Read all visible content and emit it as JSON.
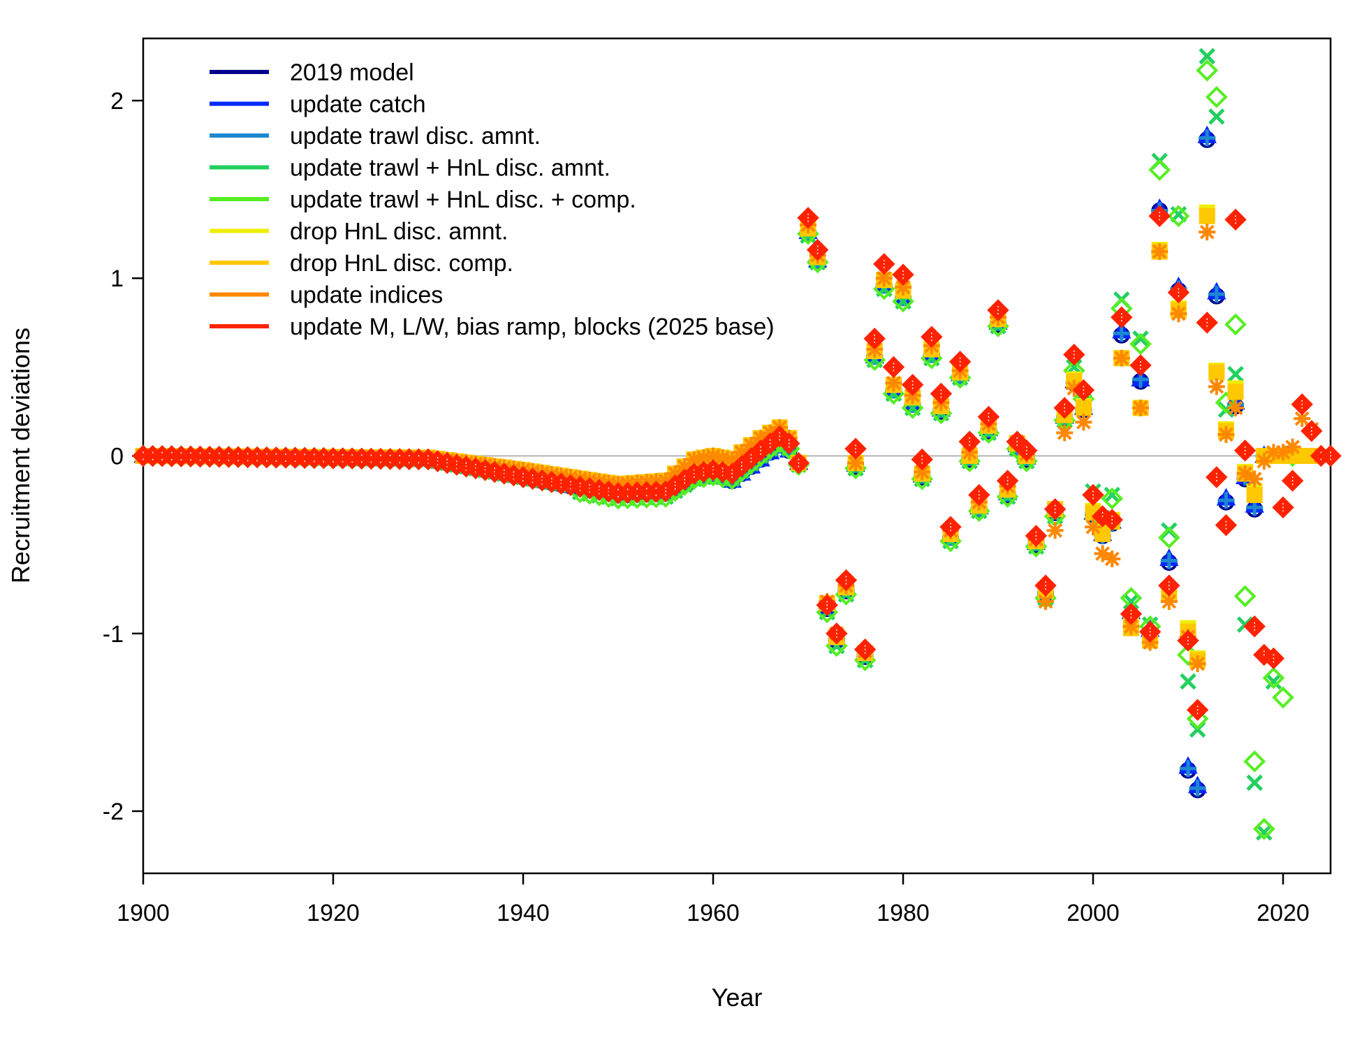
{
  "chart_data": {
    "type": "scatter",
    "title": "",
    "xlabel": "Year",
    "ylabel": "Recruitment deviations",
    "xlim": [
      1900,
      2025
    ],
    "ylim": [
      -2.35,
      2.35
    ],
    "x_ticks": [
      1900,
      1920,
      1940,
      1960,
      1980,
      2000,
      2020
    ],
    "x_tick_labels": [
      "1900",
      "1920",
      "1940",
      "1960",
      "1980",
      "2000",
      "2020"
    ],
    "y_ticks": [
      -2,
      -1,
      0,
      1,
      2
    ],
    "y_tick_labels": [
      "-2",
      "-1",
      "0",
      "1",
      "2"
    ],
    "reference_line": {
      "y": 0,
      "color": "#b3b3b3"
    },
    "legend_placement": "top-left",
    "grid": false,
    "series": [
      {
        "name": "2019 model",
        "color": "#00008f",
        "marker": "circle",
        "x": [
          1969,
          1970,
          1971,
          1972,
          1973,
          1974,
          1975,
          1976,
          1977,
          1978,
          1979,
          1980,
          1981,
          1982,
          1983,
          1984,
          1985,
          1986,
          1987,
          1988,
          1989,
          1990,
          1991,
          1992,
          1993,
          1994,
          1995,
          1996,
          1997,
          1998,
          1999,
          2000,
          2001,
          2002,
          2003,
          2004,
          2005,
          2006,
          2007,
          2008,
          2009,
          2010,
          2011,
          2012,
          2013,
          2014,
          2015,
          2016,
          2017,
          2018
        ],
        "y": [
          -0.04,
          1.25,
          1.1,
          -0.86,
          -1.04,
          -0.76,
          -0.06,
          -1.13,
          0.56,
          0.96,
          0.37,
          0.89,
          0.29,
          -0.12,
          0.57,
          0.25,
          -0.46,
          0.45,
          -0.02,
          -0.3,
          0.14,
          0.74,
          -0.22,
          0.05,
          -0.02,
          -0.5,
          -0.78,
          -0.32,
          0.21,
          0.41,
          0.26,
          -0.33,
          -0.45,
          -0.38,
          0.68,
          -0.9,
          0.42,
          -1.0,
          1.38,
          -0.6,
          0.93,
          -1.77,
          -1.88,
          1.78,
          0.9,
          -0.26,
          0.28,
          -0.13,
          -0.3,
          0.0
        ]
      },
      {
        "name": "update catch",
        "color": "#0028ff",
        "marker": "triangle",
        "x": [
          1969,
          1970,
          1971,
          1972,
          1973,
          1974,
          1975,
          1976,
          1977,
          1978,
          1979,
          1980,
          1981,
          1982,
          1983,
          1984,
          1985,
          1986,
          1987,
          1988,
          1989,
          1990,
          1991,
          1992,
          1993,
          1994,
          1995,
          1996,
          1997,
          1998,
          1999,
          2000,
          2001,
          2002,
          2003,
          2004,
          2005,
          2006,
          2007,
          2008,
          2009,
          2010,
          2011,
          2012,
          2013,
          2014,
          2015,
          2016,
          2017,
          2018
        ],
        "y": [
          -0.04,
          1.26,
          1.1,
          -0.85,
          -1.03,
          -0.75,
          -0.05,
          -1.12,
          0.56,
          0.97,
          0.38,
          0.9,
          0.3,
          -0.11,
          0.58,
          0.26,
          -0.45,
          0.46,
          -0.01,
          -0.29,
          0.15,
          0.75,
          -0.21,
          0.06,
          -0.01,
          -0.49,
          -0.77,
          -0.31,
          0.22,
          0.42,
          0.27,
          -0.32,
          -0.44,
          -0.37,
          0.7,
          -0.88,
          0.43,
          -0.98,
          1.39,
          -0.58,
          0.95,
          -1.75,
          -1.86,
          1.8,
          0.92,
          -0.24,
          0.3,
          -0.12,
          -0.28,
          0.0
        ]
      },
      {
        "name": "update trawl disc. amnt.",
        "color": "#1e88d0",
        "marker": "plus",
        "x": [
          1969,
          1970,
          1971,
          1972,
          1973,
          1974,
          1975,
          1976,
          1977,
          1978,
          1979,
          1980,
          1981,
          1982,
          1983,
          1984,
          1985,
          1986,
          1987,
          1988,
          1989,
          1990,
          1991,
          1992,
          1993,
          1994,
          1995,
          1996,
          1997,
          1998,
          1999,
          2000,
          2001,
          2002,
          2003,
          2004,
          2005,
          2006,
          2007,
          2008,
          2009,
          2010,
          2011,
          2012,
          2013,
          2014,
          2015,
          2016,
          2017,
          2018
        ],
        "y": [
          -0.04,
          1.26,
          1.1,
          -0.85,
          -1.03,
          -0.75,
          -0.05,
          -1.12,
          0.56,
          0.96,
          0.37,
          0.89,
          0.29,
          -0.11,
          0.57,
          0.26,
          -0.46,
          0.45,
          -0.01,
          -0.3,
          0.15,
          0.75,
          -0.21,
          0.05,
          -0.01,
          -0.49,
          -0.77,
          -0.31,
          0.22,
          0.41,
          0.26,
          -0.33,
          -0.45,
          -0.38,
          0.69,
          -0.89,
          0.43,
          -0.99,
          1.38,
          -0.59,
          0.94,
          -1.76,
          -1.87,
          1.79,
          0.91,
          -0.25,
          0.29,
          -0.12,
          -0.29,
          0.0
        ]
      },
      {
        "name": "update trawl + HnL disc. amnt.",
        "color": "#22d060",
        "marker": "x",
        "x": [
          1969,
          1970,
          1971,
          1972,
          1973,
          1974,
          1975,
          1976,
          1977,
          1978,
          1979,
          1980,
          1981,
          1982,
          1983,
          1984,
          1985,
          1986,
          1987,
          1988,
          1989,
          1990,
          1991,
          1992,
          1993,
          1994,
          1995,
          1996,
          1997,
          1998,
          1999,
          2000,
          2001,
          2002,
          2003,
          2004,
          2005,
          2006,
          2007,
          2008,
          2009,
          2010,
          2011,
          2012,
          2013,
          2014,
          2015,
          2016,
          2017,
          2018,
          2019,
          2020
        ],
        "y": [
          -0.05,
          1.24,
          1.09,
          -0.88,
          -1.07,
          -0.78,
          -0.07,
          -1.15,
          0.54,
          0.94,
          0.35,
          0.87,
          0.27,
          -0.13,
          0.55,
          0.24,
          -0.48,
          0.44,
          -0.03,
          -0.31,
          0.13,
          0.73,
          -0.23,
          0.04,
          -0.03,
          -0.51,
          -0.8,
          -0.34,
          0.2,
          0.5,
          0.31,
          -0.2,
          -0.35,
          -0.22,
          0.88,
          -0.82,
          0.66,
          -0.95,
          1.66,
          -0.42,
          1.36,
          -1.27,
          -1.54,
          2.25,
          1.91,
          0.26,
          0.46,
          -0.95,
          -1.84,
          -2.12,
          -1.27,
          0.0
        ]
      },
      {
        "name": "update trawl + HnL disc. + comp.",
        "color": "#55ee22",
        "marker": "diamond-open",
        "x": [
          1969,
          1970,
          1971,
          1972,
          1973,
          1974,
          1975,
          1976,
          1977,
          1978,
          1979,
          1980,
          1981,
          1982,
          1983,
          1984,
          1985,
          1986,
          1987,
          1988,
          1989,
          1990,
          1991,
          1992,
          1993,
          1994,
          1995,
          1996,
          1997,
          1998,
          1999,
          2000,
          2001,
          2002,
          2003,
          2004,
          2005,
          2006,
          2007,
          2008,
          2009,
          2010,
          2011,
          2012,
          2013,
          2014,
          2015,
          2016,
          2017,
          2018,
          2019,
          2020,
          2021
        ],
        "y": [
          -0.05,
          1.25,
          1.09,
          -0.88,
          -1.07,
          -0.78,
          -0.07,
          -1.15,
          0.54,
          0.94,
          0.35,
          0.87,
          0.27,
          -0.13,
          0.55,
          0.24,
          -0.48,
          0.44,
          -0.03,
          -0.31,
          0.13,
          0.73,
          -0.23,
          0.04,
          -0.03,
          -0.51,
          -0.8,
          -0.34,
          0.2,
          0.48,
          0.32,
          -0.22,
          -0.36,
          -0.24,
          0.83,
          -0.8,
          0.63,
          -0.96,
          1.61,
          -0.46,
          1.35,
          -1.12,
          -1.48,
          2.17,
          2.02,
          0.3,
          0.74,
          -0.79,
          -1.72,
          -2.1,
          -1.25,
          -1.36,
          0.0
        ]
      },
      {
        "name": "drop HnL disc. amnt.",
        "color": "#eeee00",
        "marker": "square",
        "x": [
          1969,
          1970,
          1971,
          1972,
          1973,
          1974,
          1975,
          1976,
          1977,
          1978,
          1979,
          1980,
          1981,
          1982,
          1983,
          1984,
          1985,
          1986,
          1987,
          1988,
          1989,
          1990,
          1991,
          1992,
          1993,
          1994,
          1995,
          1996,
          1997,
          1998,
          1999,
          2000,
          2001,
          2002,
          2003,
          2004,
          2005,
          2006,
          2007,
          2008,
          2009,
          2010,
          2011,
          2012,
          2013,
          2014,
          2015,
          2016,
          2017,
          2018,
          2019,
          2020,
          2021,
          2022,
          2023
        ],
        "y": [
          -0.04,
          1.28,
          1.12,
          -0.83,
          -1.02,
          -0.74,
          -0.04,
          -1.11,
          0.59,
          0.99,
          0.4,
          0.93,
          0.33,
          -0.1,
          0.6,
          0.28,
          -0.44,
          0.47,
          0.0,
          -0.28,
          0.17,
          0.77,
          -0.19,
          0.07,
          0.0,
          -0.48,
          -0.76,
          -0.3,
          0.23,
          0.43,
          0.28,
          -0.31,
          -0.43,
          -0.36,
          0.55,
          -0.95,
          0.27,
          -1.03,
          1.16,
          -0.77,
          0.83,
          -0.97,
          -1.14,
          1.37,
          0.48,
          0.15,
          0.38,
          -0.09,
          -0.2,
          0.0,
          0.0,
          0.0,
          0.0,
          0.0,
          0.0
        ]
      },
      {
        "name": "drop HnL disc. comp.",
        "color": "#ffc800",
        "marker": "square",
        "x": [
          1969,
          1970,
          1971,
          1972,
          1973,
          1974,
          1975,
          1976,
          1977,
          1978,
          1979,
          1980,
          1981,
          1982,
          1983,
          1984,
          1985,
          1986,
          1987,
          1988,
          1989,
          1990,
          1991,
          1992,
          1993,
          1994,
          1995,
          1996,
          1997,
          1998,
          1999,
          2000,
          2001,
          2002,
          2003,
          2004,
          2005,
          2006,
          2007,
          2008,
          2009,
          2010,
          2011,
          2012,
          2013,
          2014,
          2015,
          2016,
          2017,
          2018,
          2019,
          2020,
          2021,
          2022,
          2023
        ],
        "y": [
          -0.04,
          1.28,
          1.12,
          -0.83,
          -1.02,
          -0.74,
          -0.04,
          -1.11,
          0.59,
          0.99,
          0.4,
          0.93,
          0.33,
          -0.1,
          0.6,
          0.28,
          -0.44,
          0.47,
          0.0,
          -0.28,
          0.17,
          0.77,
          -0.19,
          0.07,
          0.0,
          -0.48,
          -0.76,
          -0.3,
          0.23,
          0.42,
          0.27,
          -0.32,
          -0.44,
          -0.37,
          0.55,
          -0.97,
          0.27,
          -1.04,
          1.15,
          -0.78,
          0.82,
          -0.99,
          -1.15,
          1.35,
          0.47,
          0.14,
          0.36,
          -0.1,
          -0.22,
          0.0,
          0.0,
          0.0,
          0.0,
          0.0,
          0.0
        ]
      },
      {
        "name": "update indices",
        "color": "#ff8800",
        "marker": "asterisk",
        "x": [
          1969,
          1970,
          1971,
          1972,
          1973,
          1974,
          1975,
          1976,
          1977,
          1978,
          1979,
          1980,
          1981,
          1982,
          1983,
          1984,
          1985,
          1986,
          1987,
          1988,
          1989,
          1990,
          1991,
          1992,
          1993,
          1994,
          1995,
          1996,
          1997,
          1998,
          1999,
          2000,
          2001,
          2002,
          2003,
          2004,
          2005,
          2006,
          2007,
          2008,
          2009,
          2010,
          2011,
          2012,
          2013,
          2014,
          2015,
          2016,
          2017,
          2018,
          2019,
          2020,
          2021,
          2022,
          2023,
          2024
        ],
        "y": [
          -0.04,
          1.3,
          1.13,
          -0.82,
          -1.0,
          -0.73,
          -0.04,
          -1.1,
          0.6,
          1.0,
          0.41,
          0.95,
          0.34,
          -0.09,
          0.62,
          0.3,
          -0.42,
          0.48,
          0.02,
          -0.26,
          0.18,
          0.78,
          -0.17,
          0.08,
          0.01,
          -0.47,
          -0.82,
          -0.42,
          0.13,
          0.38,
          0.19,
          -0.4,
          -0.55,
          -0.58,
          0.55,
          -0.96,
          0.27,
          -1.05,
          1.15,
          -0.82,
          0.8,
          -1.02,
          -1.17,
          1.26,
          0.39,
          0.12,
          0.27,
          -0.1,
          -0.13,
          -0.03,
          0.02,
          0.02,
          0.05,
          0.21,
          0.15,
          0.0
        ]
      },
      {
        "name": "update M, L/W, bias ramp, blocks (2025 base)",
        "color": "#ff2200",
        "marker": "diamond-filled",
        "x": [
          1969,
          1970,
          1971,
          1972,
          1973,
          1974,
          1975,
          1976,
          1977,
          1978,
          1979,
          1980,
          1981,
          1982,
          1983,
          1984,
          1985,
          1986,
          1987,
          1988,
          1989,
          1990,
          1991,
          1992,
          1993,
          1994,
          1995,
          1996,
          1997,
          1998,
          1999,
          2000,
          2001,
          2002,
          2003,
          2004,
          2005,
          2006,
          2007,
          2008,
          2009,
          2010,
          2011,
          2012,
          2013,
          2014,
          2015,
          2016,
          2017,
          2018,
          2019,
          2020,
          2021,
          2022,
          2023,
          2024,
          2025
        ],
        "y": [
          -0.04,
          1.34,
          1.16,
          -0.84,
          -1.0,
          -0.7,
          0.04,
          -1.09,
          0.66,
          1.08,
          0.5,
          1.02,
          0.4,
          -0.02,
          0.67,
          0.35,
          -0.4,
          0.53,
          0.08,
          -0.22,
          0.22,
          0.82,
          -0.14,
          0.08,
          0.03,
          -0.45,
          -0.73,
          -0.3,
          0.27,
          0.57,
          0.37,
          -0.22,
          -0.34,
          -0.36,
          0.78,
          -0.89,
          0.51,
          -0.99,
          1.35,
          -0.73,
          0.92,
          -1.04,
          -1.43,
          0.75,
          -0.12,
          -0.39,
          1.33,
          0.03,
          -0.96,
          -1.12,
          -1.14,
          -0.29,
          -0.14,
          0.29,
          0.14,
          0.0,
          0.0
        ]
      }
    ],
    "pre_1969_series": {
      "description_x_range": [
        1900,
        1968
      ],
      "anchor_years": [
        1900,
        1930,
        1940,
        1950,
        1955,
        1958,
        1960,
        1962,
        1965,
        1967,
        1968
      ],
      "model_2019_y": [
        0.0,
        -0.02,
        -0.12,
        -0.22,
        -0.21,
        -0.12,
        -0.1,
        -0.14,
        -0.02,
        0.06,
        0.03
      ],
      "update_indices_y": [
        0.0,
        -0.01,
        -0.08,
        -0.16,
        -0.14,
        -0.02,
        0.0,
        -0.02,
        0.1,
        0.16,
        0.1
      ],
      "base_2025_y": [
        0.0,
        -0.02,
        -0.12,
        -0.21,
        -0.2,
        -0.1,
        -0.08,
        -0.1,
        0.03,
        0.11,
        0.07
      ]
    }
  }
}
